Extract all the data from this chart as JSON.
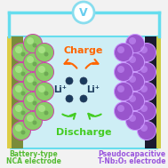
{
  "bg_color": "#ceeef5",
  "left_electrode_color": "#7a8c3a",
  "right_electrode_color": "#1a1a2e",
  "left_balls_color": "#88cc66",
  "left_balls_highlight": "#bbee99",
  "left_balls_edge": "#cc44aa",
  "right_balls_color": "#9955cc",
  "right_balls_highlight": "#cc99ff",
  "right_balls_edge": "#cc99ff",
  "left_label_color": "#55bb33",
  "right_label_color": "#9955dd",
  "charge_color": "#ff6600",
  "discharge_color": "#44cc22",
  "li_dot_color": "#1a3a5c",
  "wire_color": "#66ddee",
  "voltmeter_circle_color": "#88ddee",
  "voltmeter_text_color": "#66ccee",
  "left_label": [
    "Battery-type",
    "NCA electrode"
  ],
  "right_label": [
    "Pseudocapacitive",
    "T-Nb₂O₅ electrode"
  ],
  "charge_text": "Charge",
  "discharge_text": "Discharge",
  "li_text": "Li⁺",
  "fig_bg": "#f2f2f2",
  "yellow_strip_color": "#ddcc44",
  "right_yellow_color": "#cccc44"
}
